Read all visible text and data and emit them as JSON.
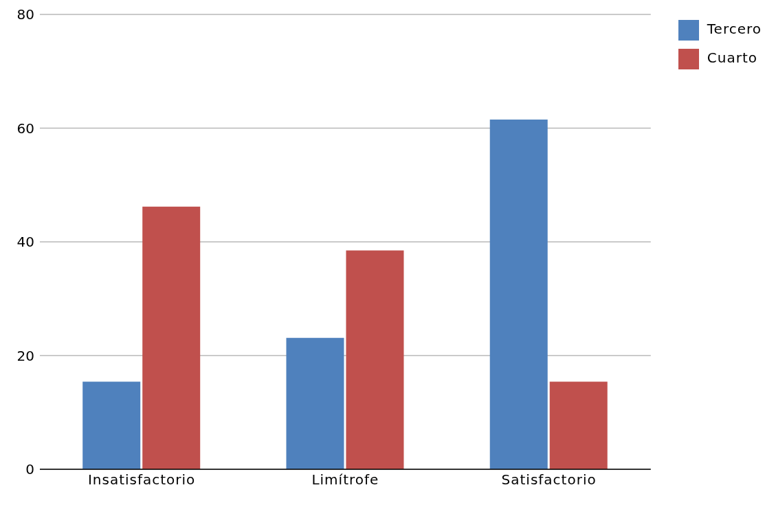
{
  "chart_data": {
    "type": "bar",
    "categories": [
      "Insatisfactorio",
      "Limítrofe",
      "Satisfactorio"
    ],
    "series": [
      {
        "name": "Tercero",
        "color": "#4f81bd",
        "values": [
          15.4,
          23.1,
          61.5
        ]
      },
      {
        "name": "Cuarto",
        "color": "#c0504d",
        "values": [
          46.2,
          38.5,
          15.4
        ]
      }
    ],
    "ylim": [
      0,
      80
    ],
    "yticks": [
      0,
      20,
      40,
      60,
      80
    ],
    "grid": "y",
    "legend": "top right"
  }
}
